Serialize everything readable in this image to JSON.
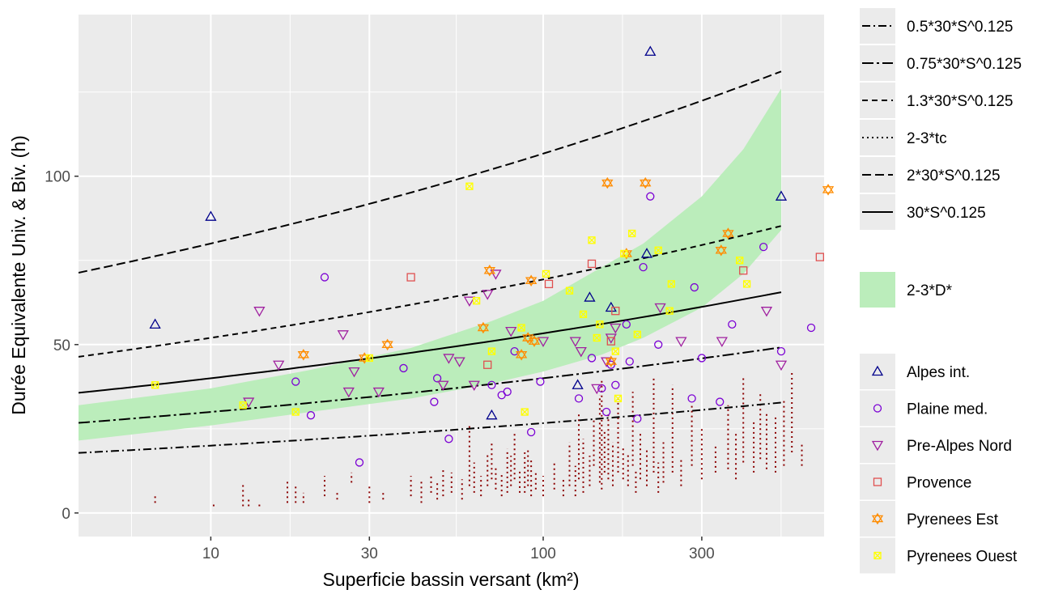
{
  "chart_data": {
    "type": "scatter",
    "title": "",
    "xlabel": "Superficie bassin versant (km²)",
    "ylabel": "Durée Equivalente Univ. & Biv. (h)",
    "x_scale": "log10",
    "xlim": [
      4,
      700
    ],
    "ylim": [
      -7,
      148
    ],
    "x_ticks": [
      10,
      30,
      100,
      300
    ],
    "x_tick_labels": [
      "10",
      "30",
      "100",
      "300"
    ],
    "y_ticks": [
      0,
      50,
      100
    ],
    "y_tick_labels": [
      "0",
      "50",
      "100"
    ],
    "grid": true,
    "legend_position": "right",
    "colors": {
      "panel": "#ebebeb",
      "grid": "#ffffff",
      "ribbon": "#bbedbb",
      "tc_points": "#8b0000"
    },
    "reference_curves": [
      {
        "name": "0.5*30*S^0.125",
        "factor": 0.5,
        "dash": "10 4 2 4"
      },
      {
        "name": "0.75*30*S^0.125",
        "factor": 0.75,
        "dash": "14 4 3 4"
      },
      {
        "name": "1.3*30*S^0.125",
        "factor": 1.3,
        "dash": "7 5"
      },
      {
        "name": "2-3*tc",
        "factor": null,
        "dash": "2 4"
      },
      {
        "name": "2*30*S^0.125",
        "factor": 2,
        "dash": "11 5"
      },
      {
        "name": "30*S^0.125",
        "factor": 1,
        "dash": ""
      }
    ],
    "ribbon": {
      "name": "2-3*D*",
      "x": [
        4,
        10,
        20,
        40,
        70,
        100,
        150,
        200,
        300,
        400,
        520
      ],
      "lower": [
        21.5,
        26,
        30,
        34,
        38.5,
        42,
        47,
        52,
        61,
        71,
        84
      ],
      "upper": [
        32,
        37,
        42.5,
        49,
        57,
        63,
        73,
        80,
        94,
        108,
        126
      ]
    },
    "tc_segments": [
      [
        6.8,
        3,
        5
      ],
      [
        10.2,
        2,
        3
      ],
      [
        12.5,
        2,
        9
      ],
      [
        13,
        2,
        4
      ],
      [
        14,
        2,
        3
      ],
      [
        17,
        3,
        10
      ],
      [
        18,
        3,
        8
      ],
      [
        19,
        3,
        6
      ],
      [
        22,
        5,
        11
      ],
      [
        24,
        4,
        6
      ],
      [
        26.5,
        9,
        12
      ],
      [
        30,
        3,
        8
      ],
      [
        33,
        4,
        6
      ],
      [
        40,
        5,
        11
      ],
      [
        43,
        3,
        10
      ],
      [
        46,
        6,
        11
      ],
      [
        48,
        4,
        9
      ],
      [
        50,
        5,
        13
      ],
      [
        53,
        6,
        12
      ],
      [
        57,
        4,
        10
      ],
      [
        60,
        8,
        26
      ],
      [
        62,
        6,
        15
      ],
      [
        65,
        5,
        11
      ],
      [
        68,
        8,
        18
      ],
      [
        70,
        10,
        21
      ],
      [
        72,
        7,
        14
      ],
      [
        75,
        5,
        12
      ],
      [
        78,
        6,
        19
      ],
      [
        80,
        8,
        17
      ],
      [
        82,
        10,
        24
      ],
      [
        85,
        6,
        13
      ],
      [
        88,
        6,
        18
      ],
      [
        90,
        8,
        19
      ],
      [
        92,
        5,
        16
      ],
      [
        95,
        7,
        12
      ],
      [
        100,
        5,
        11
      ],
      [
        108,
        7,
        15
      ],
      [
        115,
        5,
        10
      ],
      [
        120,
        8,
        21
      ],
      [
        125,
        5,
        14
      ],
      [
        128,
        10,
        30
      ],
      [
        132,
        6,
        22
      ],
      [
        138,
        8,
        17
      ],
      [
        142,
        14,
        28
      ],
      [
        148,
        9,
        35
      ],
      [
        150,
        7,
        40
      ],
      [
        153,
        12,
        25
      ],
      [
        157,
        10,
        30
      ],
      [
        162,
        8,
        21
      ],
      [
        168,
        12,
        34
      ],
      [
        174,
        10,
        20
      ],
      [
        180,
        8,
        18
      ],
      [
        186,
        14,
        36
      ],
      [
        190,
        6,
        13
      ],
      [
        196,
        10,
        24
      ],
      [
        205,
        8,
        19
      ],
      [
        215,
        12,
        40
      ],
      [
        222,
        6,
        15
      ],
      [
        230,
        9,
        21
      ],
      [
        245,
        12,
        38
      ],
      [
        260,
        8,
        16
      ],
      [
        280,
        14,
        32
      ],
      [
        300,
        10,
        25
      ],
      [
        330,
        12,
        20
      ],
      [
        360,
        13,
        32
      ],
      [
        380,
        10,
        24
      ],
      [
        400,
        15,
        40
      ],
      [
        430,
        12,
        27
      ],
      [
        450,
        16,
        36
      ],
      [
        470,
        13,
        30
      ],
      [
        500,
        12,
        29
      ],
      [
        530,
        14,
        34
      ],
      [
        560,
        18,
        42
      ],
      [
        600,
        14,
        21
      ]
    ],
    "series": [
      {
        "name": "Alpes int.",
        "color": "#00008b",
        "shape": "triangle",
        "points": [
          [
            6.8,
            56
          ],
          [
            10,
            88
          ],
          [
            70,
            29
          ],
          [
            127,
            38
          ],
          [
            138,
            64
          ],
          [
            160,
            61
          ],
          [
            210,
            137
          ],
          [
            205,
            77
          ],
          [
            520,
            94
          ]
        ]
      },
      {
        "name": "Plaine med.",
        "color": "#7b00d4",
        "shape": "circle",
        "points": [
          [
            18,
            39
          ],
          [
            20,
            29
          ],
          [
            22,
            70
          ],
          [
            28,
            15
          ],
          [
            38,
            43
          ],
          [
            47,
            33
          ],
          [
            48,
            40
          ],
          [
            52,
            22
          ],
          [
            70,
            38
          ],
          [
            75,
            35
          ],
          [
            78,
            36
          ],
          [
            82,
            48
          ],
          [
            92,
            24
          ],
          [
            98,
            39
          ],
          [
            128,
            34
          ],
          [
            140,
            46
          ],
          [
            150,
            37
          ],
          [
            155,
            30
          ],
          [
            160,
            44
          ],
          [
            165,
            38
          ],
          [
            178,
            56
          ],
          [
            182,
            45
          ],
          [
            192,
            28
          ],
          [
            200,
            73
          ],
          [
            210,
            94
          ],
          [
            222,
            50
          ],
          [
            280,
            34
          ],
          [
            285,
            67
          ],
          [
            300,
            46
          ],
          [
            340,
            33
          ],
          [
            370,
            56
          ],
          [
            460,
            79
          ],
          [
            520,
            48
          ],
          [
            640,
            55
          ]
        ]
      },
      {
        "name": "Pre-Alpes Nord",
        "color": "#a020a0",
        "shape": "triangle-down",
        "points": [
          [
            13,
            33
          ],
          [
            14,
            60
          ],
          [
            16,
            44
          ],
          [
            25,
            53
          ],
          [
            26,
            36
          ],
          [
            27,
            42
          ],
          [
            32,
            36
          ],
          [
            50,
            38
          ],
          [
            52,
            46
          ],
          [
            56,
            45
          ],
          [
            60,
            63
          ],
          [
            62,
            38
          ],
          [
            68,
            65
          ],
          [
            72,
            71
          ],
          [
            80,
            54
          ],
          [
            100,
            51
          ],
          [
            125,
            51
          ],
          [
            130,
            48
          ],
          [
            145,
            37
          ],
          [
            155,
            45
          ],
          [
            160,
            52
          ],
          [
            165,
            55
          ],
          [
            225,
            61
          ],
          [
            260,
            51
          ],
          [
            345,
            51
          ],
          [
            470,
            60
          ],
          [
            520,
            44
          ]
        ]
      },
      {
        "name": "Provence",
        "color": "#e05050",
        "shape": "square",
        "points": [
          [
            40,
            70
          ],
          [
            68,
            44
          ],
          [
            104,
            68
          ],
          [
            140,
            74
          ],
          [
            160,
            51
          ],
          [
            165,
            60
          ],
          [
            400,
            72
          ],
          [
            680,
            76
          ]
        ]
      },
      {
        "name": "Pyrenees Est",
        "color": "#ff8c00",
        "shape": "star",
        "points": [
          [
            19,
            47
          ],
          [
            29,
            46
          ],
          [
            34,
            50
          ],
          [
            66,
            55
          ],
          [
            69,
            72
          ],
          [
            86,
            47
          ],
          [
            90,
            52
          ],
          [
            92,
            69
          ],
          [
            94,
            51
          ],
          [
            156,
            98
          ],
          [
            160,
            45
          ],
          [
            178,
            77
          ],
          [
            203,
            98
          ],
          [
            343,
            78
          ],
          [
            360,
            83
          ],
          [
            720,
            96
          ]
        ]
      },
      {
        "name": "Pyrenees Ouest",
        "color": "#ffff00",
        "shape": "xbox",
        "points": [
          [
            6.8,
            38
          ],
          [
            12.5,
            32
          ],
          [
            18,
            30
          ],
          [
            30,
            46
          ],
          [
            60,
            97
          ],
          [
            63,
            63
          ],
          [
            70,
            48
          ],
          [
            86,
            55
          ],
          [
            88,
            30
          ],
          [
            102,
            71
          ],
          [
            120,
            66
          ],
          [
            132,
            59
          ],
          [
            140,
            81
          ],
          [
            145,
            52
          ],
          [
            148,
            56
          ],
          [
            165,
            48
          ],
          [
            168,
            34
          ],
          [
            175,
            77
          ],
          [
            185,
            83
          ],
          [
            192,
            53
          ],
          [
            222,
            78
          ],
          [
            240,
            60
          ],
          [
            243,
            68
          ],
          [
            390,
            75
          ],
          [
            410,
            68
          ]
        ]
      }
    ]
  }
}
